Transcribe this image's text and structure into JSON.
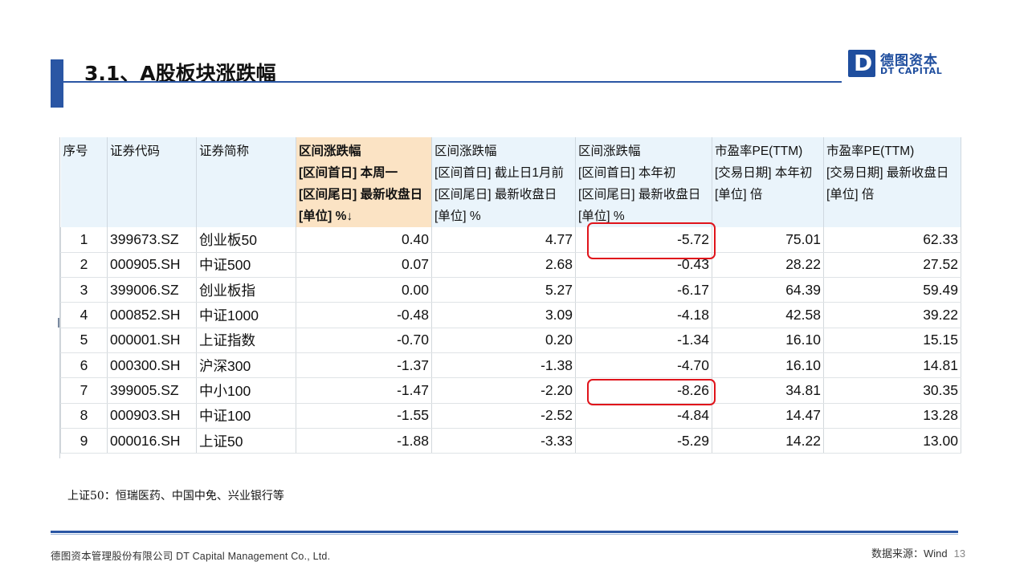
{
  "title": "3.1、A股板块涨跌幅",
  "logo": {
    "mark": "D",
    "cn": "德图资本",
    "en": "DT CAPITAL"
  },
  "table": {
    "headers": [
      {
        "lines": [
          "序号"
        ],
        "sorted": false
      },
      {
        "lines": [
          "证券代码"
        ],
        "sorted": false
      },
      {
        "lines": [
          "证券简称"
        ],
        "sorted": false
      },
      {
        "lines": [
          "区间涨跌幅",
          "[区间首日] 本周一",
          "[区间尾日] 最新收盘日",
          "[单位] %↓"
        ],
        "sorted": true
      },
      {
        "lines": [
          "区间涨跌幅",
          "[区间首日] 截止日1月前",
          "[区间尾日] 最新收盘日",
          "[单位] %"
        ],
        "sorted": false
      },
      {
        "lines": [
          "区间涨跌幅",
          "[区间首日] 本年初",
          "[区间尾日] 最新收盘日",
          "[单位] %"
        ],
        "sorted": false
      },
      {
        "lines": [
          "市盈率PE(TTM)",
          "[交易日期] 本年初",
          "[单位] 倍"
        ],
        "sorted": false
      },
      {
        "lines": [
          "市盈率PE(TTM)",
          "[交易日期] 最新收盘日",
          "[单位] 倍"
        ],
        "sorted": false
      }
    ],
    "rows": [
      [
        "1",
        "399673.SZ",
        "创业板50",
        "0.40",
        "4.77",
        "-5.72",
        "75.01",
        "62.33"
      ],
      [
        "2",
        "000905.SH",
        "中证500",
        "0.07",
        "2.68",
        "-0.43",
        "28.22",
        "27.52"
      ],
      [
        "3",
        "399006.SZ",
        "创业板指",
        "0.00",
        "5.27",
        "-6.17",
        "64.39",
        "59.49"
      ],
      [
        "4",
        "000852.SH",
        "中证1000",
        "-0.48",
        "3.09",
        "-4.18",
        "42.58",
        "39.22"
      ],
      [
        "5",
        "000001.SH",
        "上证指数",
        "-0.70",
        "0.20",
        "-1.34",
        "16.10",
        "15.15"
      ],
      [
        "6",
        "000300.SH",
        "沪深300",
        "-1.37",
        "-1.38",
        "-4.70",
        "16.10",
        "14.81"
      ],
      [
        "7",
        "399005.SZ",
        "中小100",
        "-1.47",
        "-2.20",
        "-8.26",
        "34.81",
        "30.35"
      ],
      [
        "8",
        "000903.SH",
        "中证100",
        "-1.55",
        "-2.52",
        "-4.84",
        "14.47",
        "13.28"
      ],
      [
        "9",
        "000016.SH",
        "上证50",
        "-1.88",
        "-3.33",
        "-5.29",
        "14.22",
        "13.00"
      ]
    ],
    "highlighted_cells": [
      "-5.72",
      "-8.26"
    ],
    "highlight_color": "#e0141b",
    "header_color": "#eaf4fb",
    "sorted_header_color": "#fbe3c4"
  },
  "note": "上证50：恒瑞医药、中国中免、兴业银行等",
  "footer": {
    "company": "德图资本管理股份有限公司  DT Capital  Management  Co., Ltd.",
    "source": "数据来源：Wind",
    "page": "13"
  },
  "accent_color": "#2a56a4"
}
